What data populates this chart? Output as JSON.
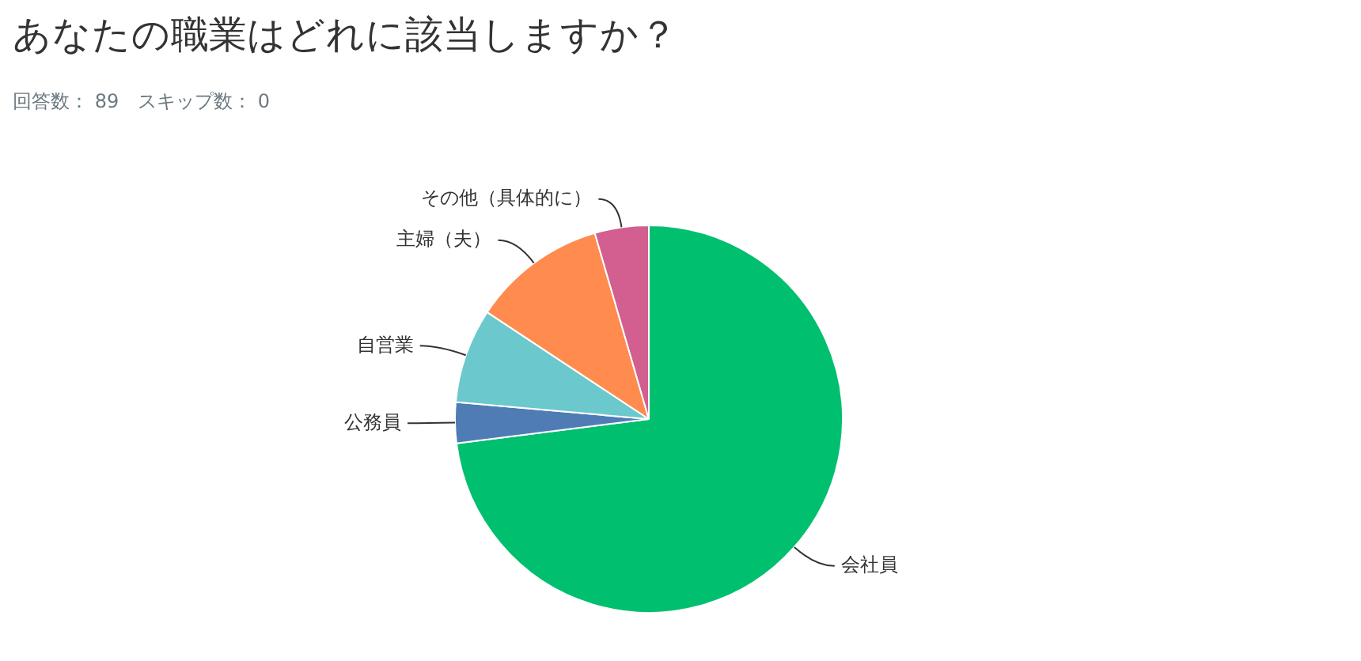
{
  "chart_data": {
    "type": "pie",
    "title": "あなたの職業はどれに該当しますか？",
    "subtitle": "回答数： 89　スキップ数： 0",
    "categories": [
      "会社員",
      "公務員",
      "自営業",
      "主婦（夫）",
      "その他（具体的に）"
    ],
    "values": [
      73.0,
      3.4,
      7.9,
      11.2,
      4.5
    ],
    "colors": [
      "#00bf6f",
      "#507cb6",
      "#6bc8cd",
      "#ff8b4f",
      "#d25f90"
    ],
    "legend": false
  }
}
